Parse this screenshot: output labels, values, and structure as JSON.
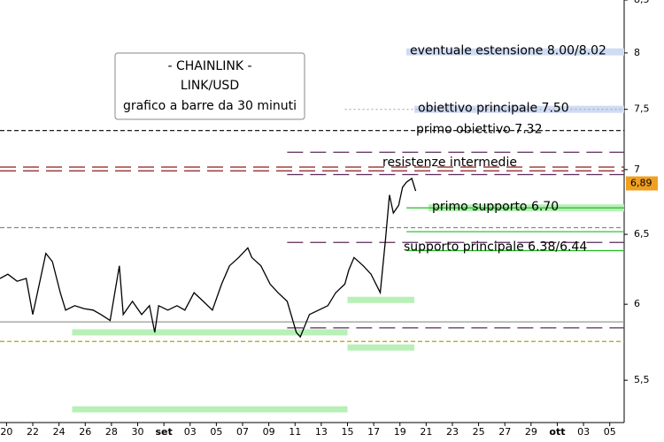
{
  "chart_data": {
    "type": "line",
    "title_lines": [
      "- CHAINLINK -",
      "LINK/USD",
      "grafico a barre da 30 minuti"
    ],
    "x": [
      -0.5,
      0.1,
      0.8,
      1.5,
      2.0,
      2.5,
      3.0,
      3.5,
      4.1,
      4.5,
      5.2,
      5.9,
      6.6,
      7.2,
      7.9,
      8.6,
      8.9,
      9.6,
      10.3,
      10.9,
      11.3,
      11.6,
      12.3,
      13.0,
      13.6,
      14.3,
      15.0,
      15.7,
      16.4,
      17.0,
      17.7,
      18.4,
      18.7,
      19.4,
      20.1,
      20.7,
      21.4,
      22.1,
      22.4,
      23.1,
      23.8,
      24.5,
      25.1,
      25.8,
      26.1,
      26.5,
      27.2,
      27.8,
      28.5,
      28.9,
      29.2,
      29.5,
      29.9,
      30.2,
      30.5,
      30.9,
      31.2
    ],
    "values": [
      6.18,
      6.21,
      6.16,
      6.18,
      5.93,
      6.14,
      6.36,
      6.3,
      6.08,
      5.96,
      5.99,
      5.97,
      5.96,
      5.93,
      5.89,
      6.27,
      5.93,
      6.02,
      5.93,
      5.99,
      5.81,
      5.99,
      5.96,
      5.99,
      5.96,
      6.08,
      6.02,
      5.96,
      6.14,
      6.27,
      6.33,
      6.4,
      6.33,
      6.27,
      6.14,
      6.08,
      6.02,
      5.81,
      5.78,
      5.93,
      5.96,
      5.99,
      6.08,
      6.14,
      6.24,
      6.33,
      6.27,
      6.21,
      6.08,
      6.46,
      6.8,
      6.66,
      6.72,
      6.86,
      6.9,
      6.93,
      6.83
    ],
    "color": "#000000",
    "log_scale": true,
    "xlim": [
      -0.5,
      47.1
    ],
    "ylim": [
      5.24,
      8.5
    ],
    "xticks": [
      {
        "value": 0,
        "label": "20"
      },
      {
        "value": 2,
        "label": "22"
      },
      {
        "value": 4,
        "label": "24"
      },
      {
        "value": 6,
        "label": "26"
      },
      {
        "value": 8,
        "label": "28"
      },
      {
        "value": 10,
        "label": "30"
      },
      {
        "value": 12,
        "label": "set"
      },
      {
        "value": 14,
        "label": "03"
      },
      {
        "value": 16,
        "label": "05"
      },
      {
        "value": 18,
        "label": "07"
      },
      {
        "value": 20,
        "label": "09"
      },
      {
        "value": 22,
        "label": "11"
      },
      {
        "value": 24,
        "label": "13"
      },
      {
        "value": 26,
        "label": "15"
      },
      {
        "value": 28,
        "label": "17"
      },
      {
        "value": 30,
        "label": "19"
      },
      {
        "value": 32,
        "label": "21"
      },
      {
        "value": 34,
        "label": "23"
      },
      {
        "value": 36,
        "label": "25"
      },
      {
        "value": 38,
        "label": "27"
      },
      {
        "value": 40,
        "label": "29"
      },
      {
        "value": 42,
        "label": "ott"
      },
      {
        "value": 44,
        "label": "03"
      },
      {
        "value": 46,
        "label": "05"
      }
    ],
    "yticks": [
      {
        "value": 5.5,
        "label": "5,5"
      },
      6,
      {
        "value": 6.5,
        "label": "6,5"
      },
      7,
      {
        "value": 7.5,
        "label": "7,5"
      },
      8,
      {
        "value": 8.5,
        "label": "8,5"
      }
    ],
    "last": {
      "value": 6.89,
      "label": "6,89",
      "color": "#f0a020"
    },
    "levels": [
      {
        "value": 7.32,
        "color": "#000000",
        "style": "dashed"
      },
      {
        "value": 7.02,
        "color": "#8b1a1a",
        "style": "long-dash"
      },
      {
        "value": 6.99,
        "color": "#8b1a1a",
        "style": "long-dash"
      },
      {
        "value": 7.14,
        "color": "#5a2a5a",
        "style": "long-dash",
        "from": 21.4
      },
      {
        "value": 6.96,
        "color": "#5a2a5a",
        "style": "long-dash",
        "from": 21.4
      },
      {
        "value": 7.5,
        "color": "#aaaaaa",
        "style": "dotted",
        "from": 25.8
      },
      {
        "value": 6.7,
        "color": "#22bb22",
        "style": "solid",
        "from": 30.5
      },
      {
        "value": 6.55,
        "color": "#888888",
        "style": "dashed"
      },
      {
        "value": 6.52,
        "color": "#22bb22",
        "style": "solid",
        "from": 30.5
      },
      {
        "value": 6.44,
        "color": "#5a2a5a",
        "style": "long-dash",
        "from": 21.4
      },
      {
        "value": 6.38,
        "color": "#22bb22",
        "style": "solid",
        "from": 30.5
      },
      {
        "value": 5.88,
        "color": "#999999",
        "style": "solid"
      },
      {
        "value": 5.84,
        "color": "#5a2a5a",
        "style": "long-dash",
        "from": 21.4
      },
      {
        "value": 5.75,
        "color": "#b8a000",
        "style": "dashed"
      }
    ],
    "zones": [
      {
        "value": 5.81,
        "from": 5.0,
        "to": 26.0,
        "color": "#b8f0b8"
      },
      {
        "value": 6.03,
        "from": 26.0,
        "to": 31.1,
        "color": "#b8f0b8"
      },
      {
        "value": 5.71,
        "from": 26.0,
        "to": 31.1,
        "color": "#b8f0b8"
      },
      {
        "value": 5.32,
        "from": 5.0,
        "to": 26.0,
        "color": "#b8f0b8"
      }
    ],
    "annotations": [
      {
        "text": "eventuale estensione 8.00/8.02",
        "value": 8.01,
        "highlight": "#d0dcf4"
      },
      {
        "text": "obiettivo principale 7.50",
        "value": 7.5,
        "highlight": "#d0dcf4"
      },
      {
        "text": "primo obiettivo 7.32",
        "value": 7.32
      },
      {
        "text": "resistenze intermedie",
        "value": 7.05
      },
      {
        "text": "primo supporto 6.70",
        "value": 6.7,
        "highlight": "#b8f0b8"
      },
      {
        "text": "supporto principale 6.38/6.44",
        "value": 6.4
      }
    ]
  }
}
